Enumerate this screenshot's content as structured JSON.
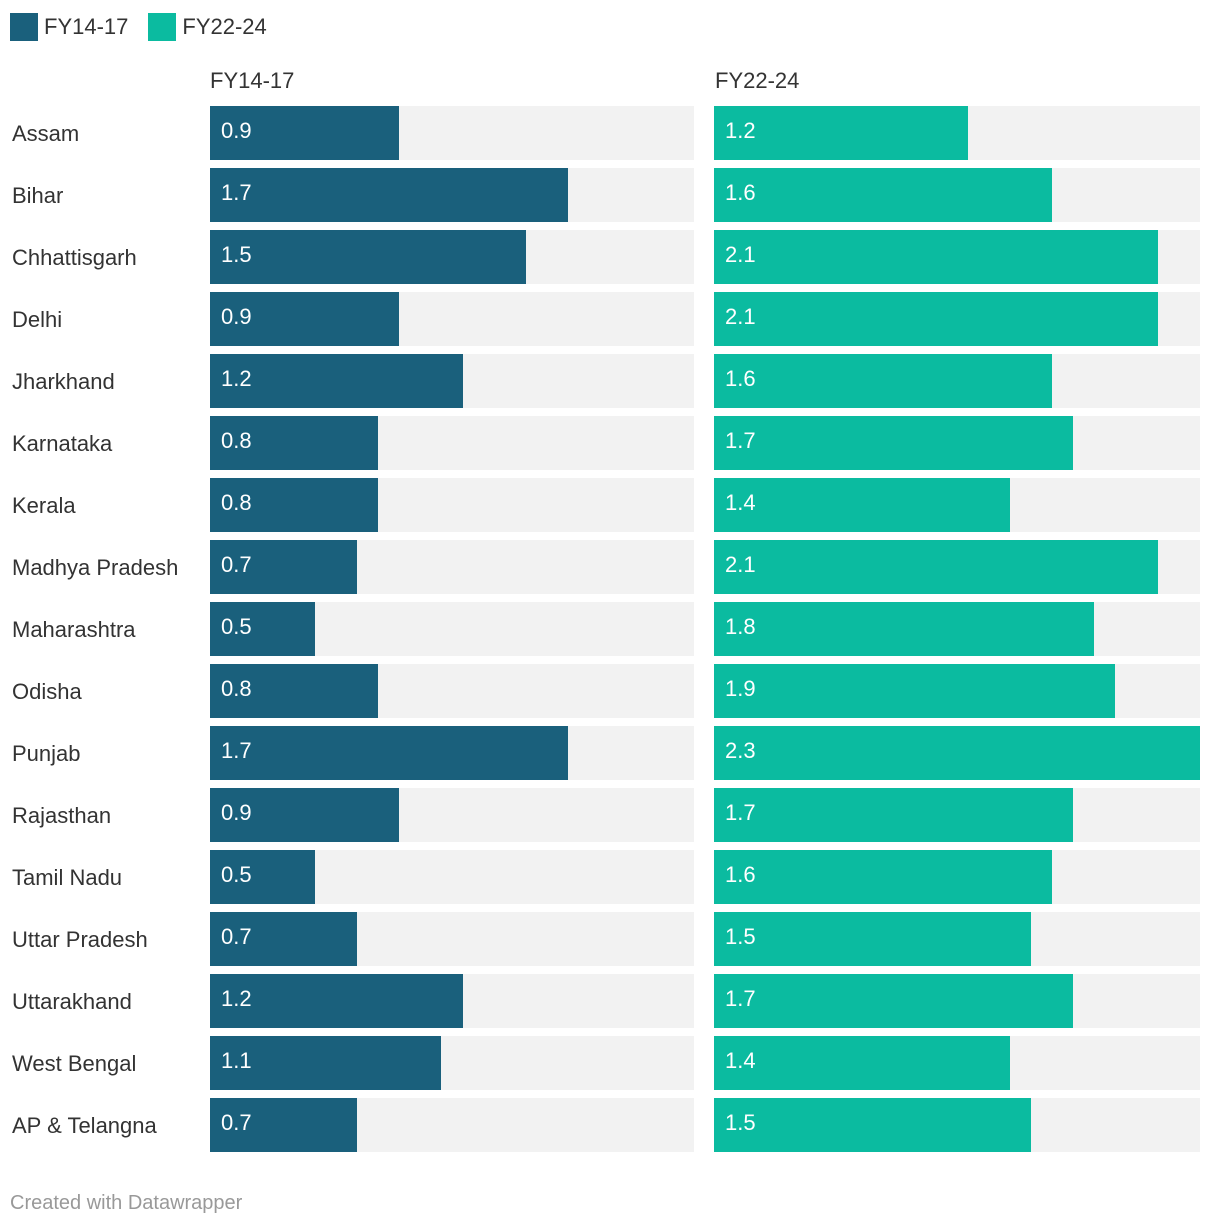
{
  "legend": [
    {
      "label": "FY14-17",
      "color": "#1a607c"
    },
    {
      "label": "FY22-24",
      "color": "#0bbba0"
    }
  ],
  "footer": "Created with Datawrapper",
  "chart_data": {
    "type": "bar",
    "orientation": "horizontal",
    "xlim": [
      0,
      2.3
    ],
    "categories": [
      "Assam",
      "Bihar",
      "Chhattisgarh",
      "Delhi",
      "Jharkhand",
      "Karnataka",
      "Kerala",
      "Madhya Pradesh",
      "Maharashtra",
      "Odisha",
      "Punjab",
      "Rajasthan",
      "Tamil Nadu",
      "Uttar Pradesh",
      "Uttarakhand",
      "West Bengal",
      "AP & Telangna"
    ],
    "series": [
      {
        "name": "FY14-17",
        "color": "#1a607c",
        "values": [
          0.9,
          1.7,
          1.5,
          0.9,
          1.2,
          0.8,
          0.8,
          0.7,
          0.5,
          0.8,
          1.7,
          0.9,
          0.5,
          0.7,
          1.2,
          1.1,
          0.7
        ]
      },
      {
        "name": "FY22-24",
        "color": "#0bbba0",
        "values": [
          1.2,
          1.6,
          2.1,
          2.1,
          1.6,
          1.7,
          1.4,
          2.1,
          1.8,
          1.9,
          2.3,
          1.7,
          1.6,
          1.5,
          1.7,
          1.4,
          1.5
        ]
      }
    ]
  }
}
